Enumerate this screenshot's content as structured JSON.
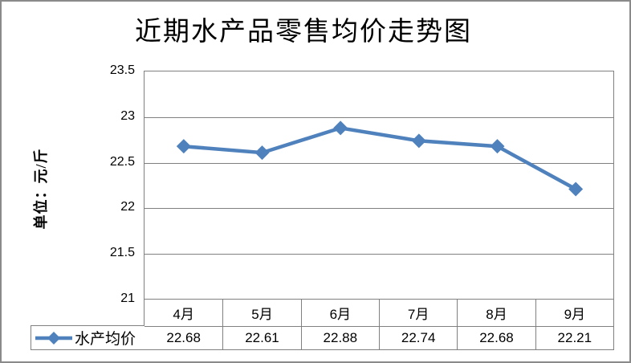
{
  "title": "近期水产品零售均价走势图",
  "y_axis_label": "单位：元/斤",
  "legend": {
    "series_label": "水产均价"
  },
  "colors": {
    "series_line": "#4F81BD",
    "grid_and_border": "#808080",
    "frame_border": "#8a8a8a",
    "text": "#000000"
  },
  "chart_data": {
    "type": "line",
    "title": "近期水产品零售均价走势图",
    "xlabel": "",
    "ylabel": "单位：元/斤",
    "categories": [
      "4月",
      "5月",
      "6月",
      "7月",
      "8月",
      "9月"
    ],
    "series": [
      {
        "name": "水产均价",
        "values": [
          22.68,
          22.61,
          22.88,
          22.74,
          22.68,
          22.21
        ]
      }
    ],
    "table_values": [
      "22.68",
      "22.61",
      "22.88",
      "22.74",
      "22.68",
      "22.21"
    ],
    "ylim": [
      21,
      23.5
    ],
    "yticks": [
      23.5,
      23,
      22.5,
      22,
      21.5,
      21
    ],
    "ytick_labels": [
      "23.5",
      "23",
      "22.5",
      "22",
      "21.5",
      "21"
    ],
    "grid": true,
    "legend_position": "bottom-left-of-data-table",
    "marker": "diamond",
    "line_color": "#4F81BD"
  }
}
